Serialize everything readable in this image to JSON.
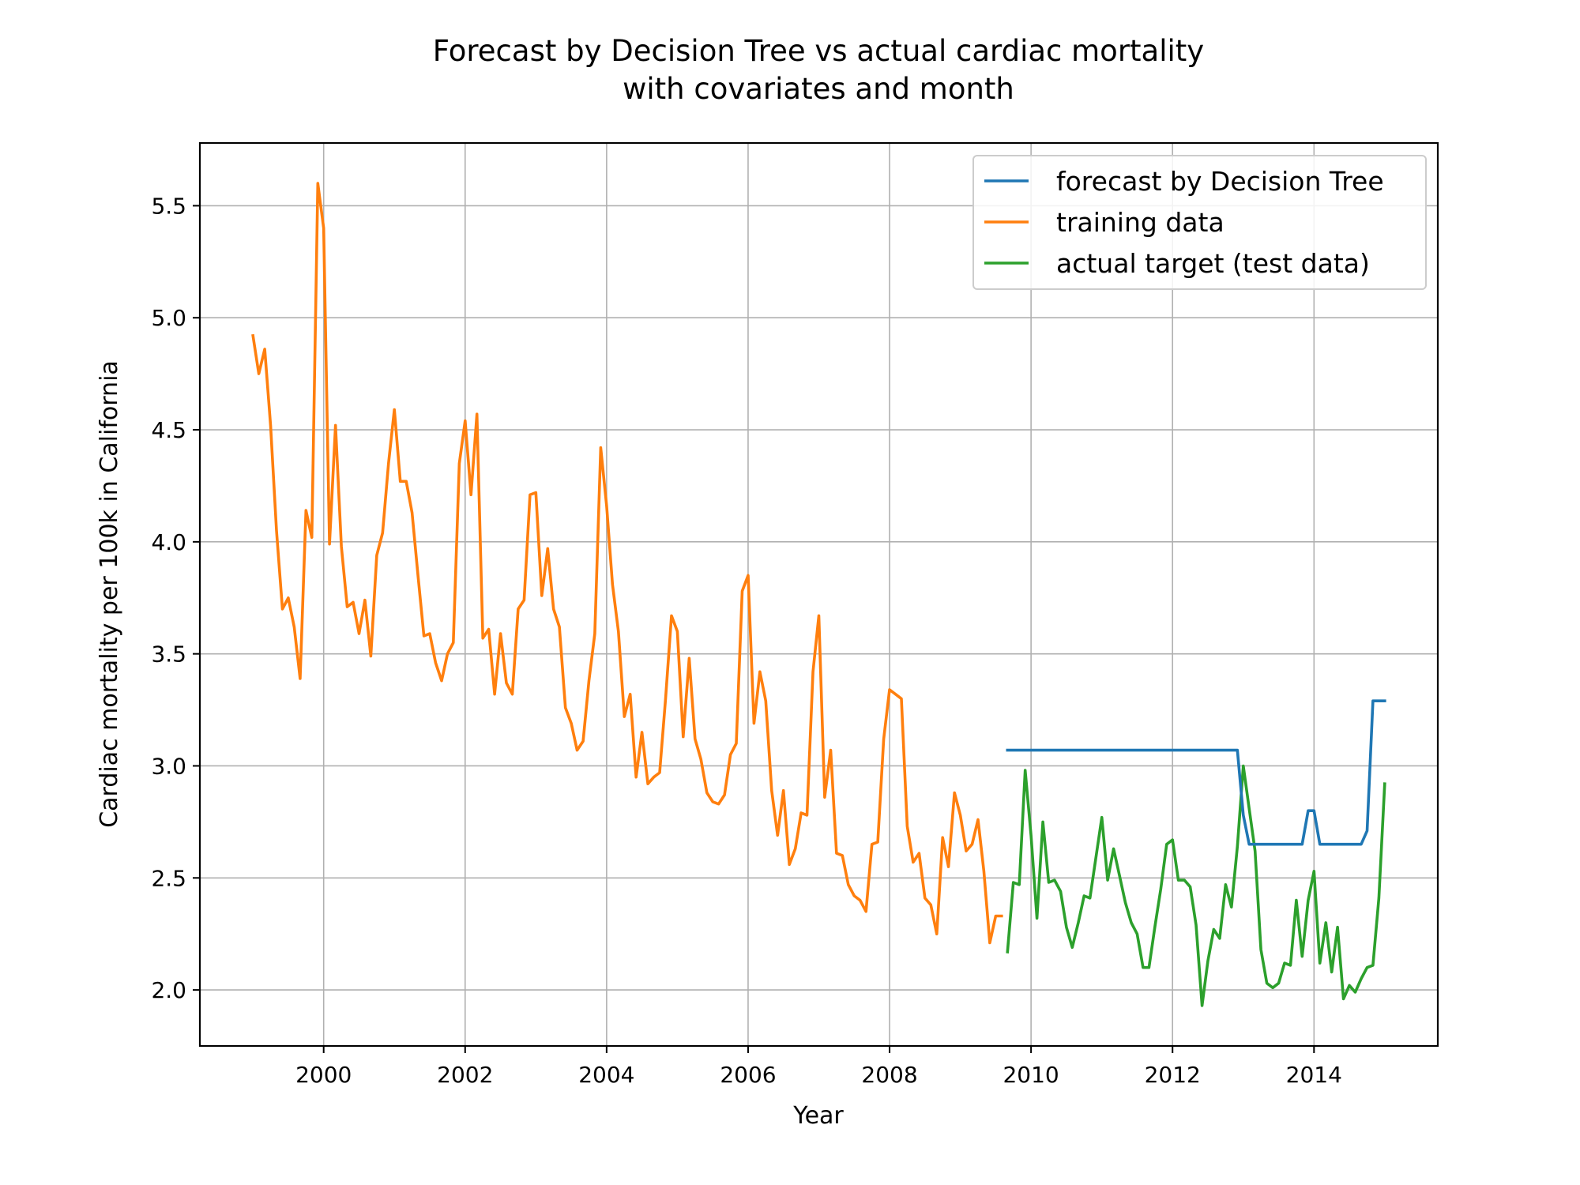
{
  "chart_data": {
    "type": "line",
    "title": "Forecast by Decision Tree vs actual cardiac mortality\nwith covariates and month",
    "title_lines": [
      "Forecast by Decision Tree vs actual cardiac mortality",
      "with covariates and month"
    ],
    "xlabel": "Year",
    "ylabel": "Cardiac mortality per 100k in California",
    "xlim": [
      1998.25,
      2015.75
    ],
    "ylim": [
      1.75,
      5.78
    ],
    "xticks": [
      2000,
      2002,
      2004,
      2006,
      2008,
      2010,
      2012,
      2014
    ],
    "xtick_labels": [
      "2000",
      "2002",
      "2004",
      "2006",
      "2008",
      "2010",
      "2012",
      "2014"
    ],
    "yticks": [
      2.0,
      2.5,
      3.0,
      3.5,
      4.0,
      4.5,
      5.0,
      5.5
    ],
    "ytick_labels": [
      "2.0",
      "2.5",
      "3.0",
      "3.5",
      "4.0",
      "4.5",
      "5.0",
      "5.5"
    ],
    "grid": true,
    "legend_position": "upper right",
    "series": [
      {
        "name": "forecast by Decision Tree",
        "color": "#1f77b4",
        "x": [
          2009.667,
          2009.75,
          2009.833,
          2009.917,
          2010.0,
          2010.083,
          2010.167,
          2010.25,
          2010.333,
          2010.417,
          2010.5,
          2010.583,
          2010.667,
          2010.75,
          2010.833,
          2010.917,
          2011.0,
          2011.083,
          2011.167,
          2011.25,
          2011.333,
          2011.417,
          2011.5,
          2011.583,
          2011.667,
          2011.75,
          2011.833,
          2011.917,
          2012.0,
          2012.083,
          2012.167,
          2012.25,
          2012.333,
          2012.417,
          2012.5,
          2012.583,
          2012.667,
          2012.75,
          2012.833,
          2012.917,
          2013.0,
          2013.083,
          2013.167,
          2013.25,
          2013.333,
          2013.417,
          2013.5,
          2013.583,
          2013.667,
          2013.75,
          2013.833,
          2013.917,
          2014.0,
          2014.083,
          2014.167,
          2014.25,
          2014.333,
          2014.417,
          2014.5,
          2014.583,
          2014.667,
          2014.75,
          2014.833,
          2014.917,
          2015.0
        ],
        "y": [
          3.07,
          3.07,
          3.07,
          3.07,
          3.07,
          3.07,
          3.07,
          3.07,
          3.07,
          3.07,
          3.07,
          3.07,
          3.07,
          3.07,
          3.07,
          3.07,
          3.07,
          3.07,
          3.07,
          3.07,
          3.07,
          3.07,
          3.07,
          3.07,
          3.07,
          3.07,
          3.07,
          3.07,
          3.07,
          3.07,
          3.07,
          3.07,
          3.07,
          3.07,
          3.07,
          3.07,
          3.07,
          3.07,
          3.07,
          3.07,
          2.78,
          2.65,
          2.65,
          2.65,
          2.65,
          2.65,
          2.65,
          2.65,
          2.65,
          2.65,
          2.65,
          2.8,
          2.8,
          2.65,
          2.65,
          2.65,
          2.65,
          2.65,
          2.65,
          2.65,
          2.65,
          2.71,
          3.29,
          3.29,
          3.29
        ]
      },
      {
        "name": "training data",
        "color": "#ff7f0e",
        "x": [
          1999.0,
          1999.083,
          1999.167,
          1999.25,
          1999.333,
          1999.417,
          1999.5,
          1999.583,
          1999.667,
          1999.75,
          1999.833,
          1999.917,
          2000.0,
          2000.083,
          2000.167,
          2000.25,
          2000.333,
          2000.417,
          2000.5,
          2000.583,
          2000.667,
          2000.75,
          2000.833,
          2000.917,
          2001.0,
          2001.083,
          2001.167,
          2001.25,
          2001.333,
          2001.417,
          2001.5,
          2001.583,
          2001.667,
          2001.75,
          2001.833,
          2001.917,
          2002.0,
          2002.083,
          2002.167,
          2002.25,
          2002.333,
          2002.417,
          2002.5,
          2002.583,
          2002.667,
          2002.75,
          2002.833,
          2002.917,
          2003.0,
          2003.083,
          2003.167,
          2003.25,
          2003.333,
          2003.417,
          2003.5,
          2003.583,
          2003.667,
          2003.75,
          2003.833,
          2003.917,
          2004.0,
          2004.083,
          2004.167,
          2004.25,
          2004.333,
          2004.417,
          2004.5,
          2004.583,
          2004.667,
          2004.75,
          2004.833,
          2004.917,
          2005.0,
          2005.083,
          2005.167,
          2005.25,
          2005.333,
          2005.417,
          2005.5,
          2005.583,
          2005.667,
          2005.75,
          2005.833,
          2005.917,
          2006.0,
          2006.083,
          2006.167,
          2006.25,
          2006.333,
          2006.417,
          2006.5,
          2006.583,
          2006.667,
          2006.75,
          2006.833,
          2006.917,
          2007.0,
          2007.083,
          2007.167,
          2007.25,
          2007.333,
          2007.417,
          2007.5,
          2007.583,
          2007.667,
          2007.75,
          2007.833,
          2007.917,
          2008.0,
          2008.083,
          2008.167,
          2008.25,
          2008.333,
          2008.417,
          2008.5,
          2008.583,
          2008.667,
          2008.75,
          2008.833,
          2008.917,
          2009.0,
          2009.083,
          2009.167,
          2009.25,
          2009.333,
          2009.417,
          2009.5,
          2009.583
        ],
        "y": [
          4.92,
          4.75,
          4.86,
          4.52,
          4.05,
          3.7,
          3.75,
          3.62,
          3.39,
          4.14,
          4.02,
          5.6,
          5.4,
          3.99,
          4.52,
          3.98,
          3.71,
          3.73,
          3.59,
          3.74,
          3.49,
          3.94,
          4.04,
          4.35,
          4.59,
          4.27,
          4.27,
          4.13,
          3.85,
          3.58,
          3.59,
          3.46,
          3.38,
          3.5,
          3.55,
          4.35,
          4.54,
          4.21,
          4.57,
          3.57,
          3.61,
          3.32,
          3.59,
          3.37,
          3.32,
          3.7,
          3.74,
          4.21,
          4.22,
          3.76,
          3.97,
          3.7,
          3.62,
          3.26,
          3.19,
          3.07,
          3.11,
          3.38,
          3.59,
          4.42,
          4.16,
          3.81,
          3.6,
          3.22,
          3.32,
          2.95,
          3.15,
          2.92,
          2.95,
          2.97,
          3.3,
          3.67,
          3.6,
          3.13,
          3.48,
          3.12,
          3.03,
          2.88,
          2.84,
          2.83,
          2.87,
          3.05,
          3.1,
          3.78,
          3.85,
          3.19,
          3.42,
          3.29,
          2.89,
          2.69,
          2.89,
          2.56,
          2.63,
          2.79,
          2.78,
          3.42,
          3.67,
          2.86,
          3.07,
          2.61,
          2.6,
          2.47,
          2.42,
          2.4,
          2.35,
          2.65,
          2.66,
          3.12,
          3.34,
          3.32,
          3.3,
          2.73,
          2.57,
          2.61,
          2.41,
          2.38,
          2.25,
          2.68,
          2.55,
          2.88,
          2.78,
          2.62,
          2.65,
          2.76,
          2.53,
          2.21,
          2.33,
          2.33
        ]
      },
      {
        "name": "actual target (test data)",
        "color": "#2ca02c",
        "x": [
          2009.667,
          2009.75,
          2009.833,
          2009.917,
          2010.0,
          2010.083,
          2010.167,
          2010.25,
          2010.333,
          2010.417,
          2010.5,
          2010.583,
          2010.667,
          2010.75,
          2010.833,
          2010.917,
          2011.0,
          2011.083,
          2011.167,
          2011.25,
          2011.333,
          2011.417,
          2011.5,
          2011.583,
          2011.667,
          2011.75,
          2011.833,
          2011.917,
          2012.0,
          2012.083,
          2012.167,
          2012.25,
          2012.333,
          2012.417,
          2012.5,
          2012.583,
          2012.667,
          2012.75,
          2012.833,
          2012.917,
          2013.0,
          2013.083,
          2013.167,
          2013.25,
          2013.333,
          2013.417,
          2013.5,
          2013.583,
          2013.667,
          2013.75,
          2013.833,
          2013.917,
          2014.0,
          2014.083,
          2014.167,
          2014.25,
          2014.333,
          2014.417,
          2014.5,
          2014.583,
          2014.667,
          2014.75,
          2014.833,
          2014.917,
          2015.0
        ],
        "y": [
          2.17,
          2.48,
          2.47,
          2.98,
          2.69,
          2.32,
          2.75,
          2.48,
          2.49,
          2.44,
          2.28,
          2.19,
          2.3,
          2.42,
          2.41,
          2.59,
          2.77,
          2.49,
          2.63,
          2.51,
          2.39,
          2.3,
          2.25,
          2.1,
          2.1,
          2.28,
          2.45,
          2.65,
          2.67,
          2.49,
          2.49,
          2.46,
          2.29,
          1.93,
          2.13,
          2.27,
          2.23,
          2.47,
          2.37,
          2.64,
          3.0,
          2.81,
          2.62,
          2.18,
          2.03,
          2.01,
          2.03,
          2.12,
          2.11,
          2.4,
          2.15,
          2.4,
          2.53,
          2.12,
          2.3,
          2.08,
          2.28,
          1.96,
          2.02,
          1.99,
          2.05,
          2.1,
          2.11,
          2.41,
          2.92
        ]
      }
    ]
  }
}
